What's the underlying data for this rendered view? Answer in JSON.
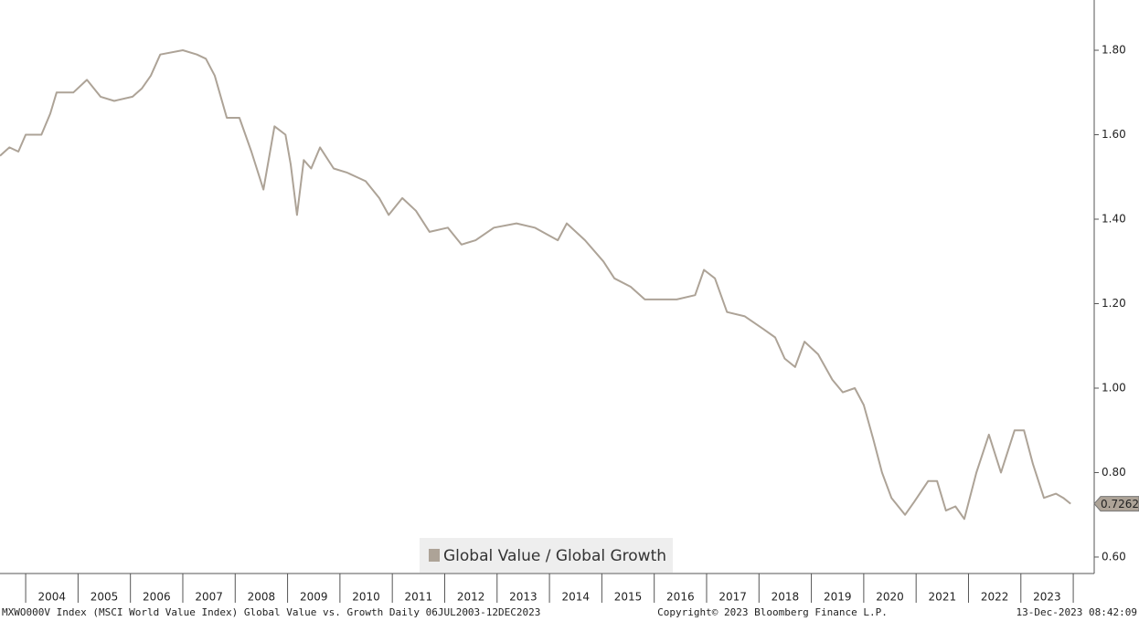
{
  "chart_data": {
    "type": "line",
    "series": [
      {
        "name": "Global Value / Global Growth",
        "color": "#ada397",
        "values": [
          1.55,
          1.57,
          1.56,
          1.6,
          1.6,
          1.65,
          1.7,
          1.7,
          1.73,
          1.69,
          1.68,
          1.69,
          1.71,
          1.74,
          1.79,
          1.8,
          1.79,
          1.78,
          1.74,
          1.64,
          1.64,
          1.56,
          1.47,
          1.62,
          1.6,
          1.53,
          1.41,
          1.54,
          1.52,
          1.57,
          1.52,
          1.51,
          1.49,
          1.45,
          1.41,
          1.45,
          1.42,
          1.37,
          1.38,
          1.34,
          1.35,
          1.38,
          1.39,
          1.38,
          1.35,
          1.39,
          1.35,
          1.3,
          1.26,
          1.24,
          1.21,
          1.21,
          1.21,
          1.22,
          1.28,
          1.26,
          1.18,
          1.17,
          1.14,
          1.12,
          1.07,
          1.05,
          1.11,
          1.08,
          1.02,
          0.99,
          1.0,
          0.96,
          0.88,
          0.8,
          0.74,
          0.7,
          0.73,
          0.78,
          0.78,
          0.71,
          0.72,
          0.69,
          0.8,
          0.89,
          0.8,
          0.9,
          0.9,
          0.82,
          0.74,
          0.75,
          0.74,
          0.7262
        ]
      }
    ],
    "x": [
      2003.51,
      2003.69,
      2003.86,
      2004.0,
      2004.3,
      2004.47,
      2004.59,
      2004.91,
      2005.17,
      2005.43,
      2005.69,
      2006.04,
      2006.22,
      2006.39,
      2006.57,
      2007.0,
      2007.27,
      2007.44,
      2007.61,
      2007.84,
      2008.08,
      2008.31,
      2008.54,
      2008.75,
      2008.96,
      2009.06,
      2009.18,
      2009.31,
      2009.45,
      2009.62,
      2009.88,
      2010.14,
      2010.49,
      2010.75,
      2010.93,
      2011.19,
      2011.45,
      2011.71,
      2012.06,
      2012.32,
      2012.59,
      2012.94,
      2013.37,
      2013.72,
      2014.16,
      2014.33,
      2014.68,
      2015.03,
      2015.24,
      2015.55,
      2015.82,
      2016.08,
      2016.43,
      2016.78,
      2016.95,
      2017.16,
      2017.39,
      2017.73,
      2018.08,
      2018.31,
      2018.49,
      2018.69,
      2018.87,
      2019.13,
      2019.4,
      2019.6,
      2019.83,
      2020.0,
      2020.18,
      2020.35,
      2020.53,
      2020.79,
      2020.96,
      2021.23,
      2021.4,
      2021.57,
      2021.75,
      2021.92,
      2022.15,
      2022.39,
      2022.62,
      2022.88,
      2023.06,
      2023.23,
      2023.44,
      2023.67,
      2023.81,
      2023.95
    ],
    "xlim": [
      2003.51,
      2024.4
    ],
    "xticks": [
      2004,
      2005,
      2006,
      2007,
      2008,
      2009,
      2010,
      2011,
      2012,
      2013,
      2014,
      2015,
      2016,
      2017,
      2018,
      2019,
      2020,
      2021,
      2022,
      2023
    ],
    "ylim": [
      0.561,
      1.919
    ],
    "yticks": [
      {
        "value": 0.6,
        "label": "0.60"
      },
      {
        "value": 0.8,
        "label": "0.80"
      },
      {
        "value": 1.0,
        "label": "1.00"
      },
      {
        "value": 1.2,
        "label": "1.20"
      },
      {
        "value": 1.4,
        "label": "1.40"
      },
      {
        "value": 1.6,
        "label": "1.60"
      },
      {
        "value": 1.8,
        "label": "1.80"
      }
    ],
    "last_value": {
      "value": 0.7262,
      "label": "0.7262"
    },
    "footer_left": "MXWO000V Index (MSCI World Value Index) Global Value vs. Growth  Daily 06JUL2003-12DEC2023",
    "footer_center": "Copyright© 2023 Bloomberg Finance L.P.",
    "footer_right": "13-Dec-2023 08:42:09",
    "legend": "bottom-center"
  }
}
